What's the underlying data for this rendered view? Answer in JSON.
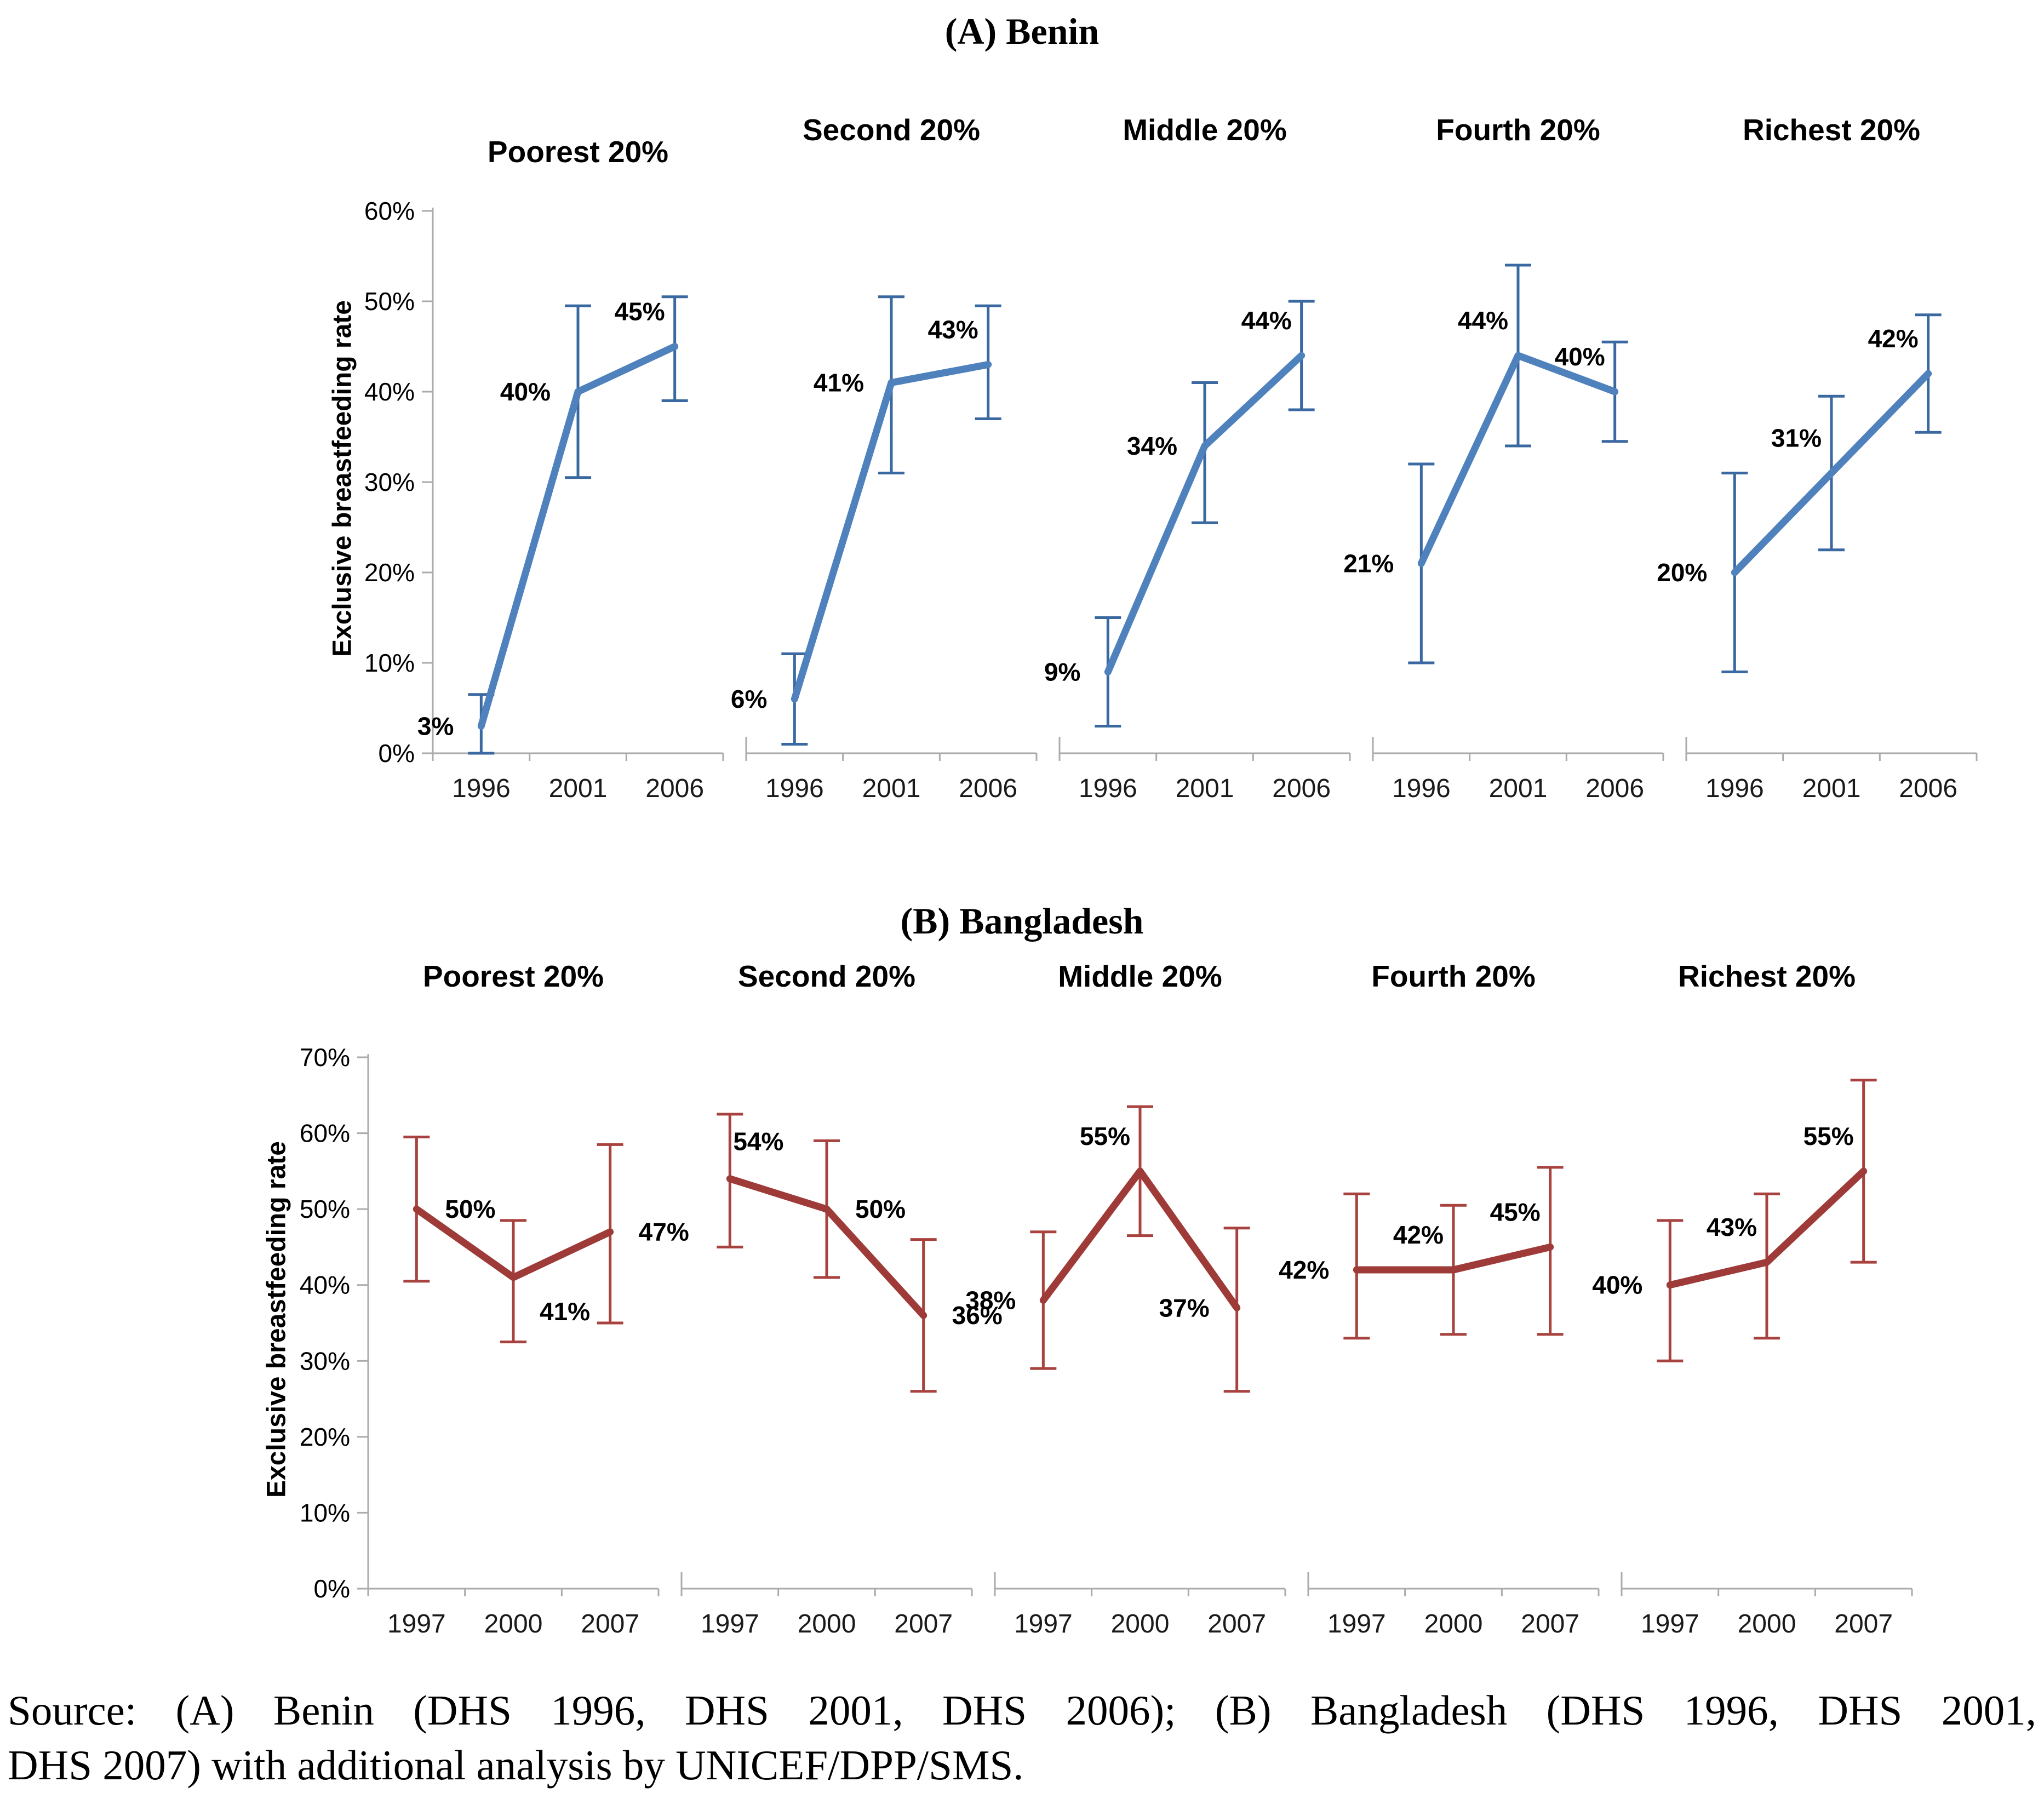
{
  "chart_data": {
    "type": "line",
    "error_bars": true,
    "grid": false,
    "legend": "none",
    "panels": [
      {
        "id": "A",
        "title": "(A) Benin",
        "ylabel": "Exclusive breastfeeding rate",
        "ymax": 60,
        "yticks": [
          "0%",
          "10%",
          "20%",
          "30%",
          "40%",
          "50%",
          "60%"
        ],
        "years": [
          "1996",
          "2001",
          "2006"
        ],
        "line_color": "#4F81BD",
        "error_color": "#3A68A0",
        "charts": [
          {
            "title": "Poorest 20%",
            "values": [
              3,
              40,
              45
            ],
            "points": [
              {
                "label": "3%",
                "value": 3,
                "lo": 0,
                "hi": 6.5,
                "pos": "left"
              },
              {
                "label": "40%",
                "value": 40,
                "lo": 30.5,
                "hi": 49.5,
                "pos": "left"
              },
              {
                "label": "45%",
                "value": 45,
                "lo": 39,
                "hi": 50.5,
                "pos": "above-left"
              }
            ]
          },
          {
            "title": "Second 20%",
            "values": [
              6,
              41,
              43
            ],
            "points": [
              {
                "label": "6%",
                "value": 6,
                "lo": 1,
                "hi": 11,
                "pos": "left"
              },
              {
                "label": "41%",
                "value": 41,
                "lo": 31,
                "hi": 50.5,
                "pos": "left"
              },
              {
                "label": "43%",
                "value": 43,
                "lo": 37,
                "hi": 49.5,
                "pos": "above-left"
              }
            ]
          },
          {
            "title": "Middle 20%",
            "values": [
              9,
              34,
              44
            ],
            "points": [
              {
                "label": "9%",
                "value": 9,
                "lo": 3,
                "hi": 15,
                "pos": "left"
              },
              {
                "label": "34%",
                "value": 34,
                "lo": 25.5,
                "hi": 41,
                "pos": "left"
              },
              {
                "label": "44%",
                "value": 44,
                "lo": 38,
                "hi": 50,
                "pos": "above-left"
              }
            ]
          },
          {
            "title": "Fourth 20%",
            "values": [
              21,
              44,
              40
            ],
            "points": [
              {
                "label": "21%",
                "value": 21,
                "lo": 10,
                "hi": 32,
                "pos": "left"
              },
              {
                "label": "44%",
                "value": 44,
                "lo": 34,
                "hi": 54,
                "pos": "above-left"
              },
              {
                "label": "40%",
                "value": 40,
                "lo": 34.5,
                "hi": 45.5,
                "pos": "above-left"
              }
            ]
          },
          {
            "title": "Richest 20%",
            "values": [
              20,
              31,
              42
            ],
            "points": [
              {
                "label": "20%",
                "value": 20,
                "lo": 9,
                "hi": 31,
                "pos": "left"
              },
              {
                "label": "31%",
                "value": 31,
                "lo": 22.5,
                "hi": 39.5,
                "pos": "above-left"
              },
              {
                "label": "42%",
                "value": 42,
                "lo": 35.5,
                "hi": 48.5,
                "pos": "above-left"
              }
            ]
          }
        ]
      },
      {
        "id": "B",
        "title": "(B) Bangladesh",
        "ylabel": "Exclusive breastfeeding rate",
        "ymax": 70,
        "yticks": [
          "0%",
          "10%",
          "20%",
          "30%",
          "40%",
          "50%",
          "60%",
          "70%"
        ],
        "years": [
          "1997",
          "2000",
          "2007"
        ],
        "line_color": "#9E3B38",
        "error_color": "#A8423E",
        "charts": [
          {
            "title": "Poorest 20%",
            "values": [
              50,
              41,
              47
            ],
            "points": [
              {
                "label": "50%",
                "value": 50,
                "lo": 40.5,
                "hi": 59.5,
                "pos": "right"
              },
              {
                "label": "41%",
                "value": 41,
                "lo": 32.5,
                "hi": 48.5,
                "pos": "below-right"
              },
              {
                "label": "47%",
                "value": 47,
                "lo": 35,
                "hi": 58.5,
                "pos": "right"
              }
            ]
          },
          {
            "title": "Second 20%",
            "values": [
              54,
              50,
              36
            ],
            "points": [
              {
                "label": "54%",
                "value": 54,
                "lo": 45,
                "hi": 62.5,
                "pos": "above-right"
              },
              {
                "label": "50%",
                "value": 50,
                "lo": 41,
                "hi": 59,
                "pos": "right"
              },
              {
                "label": "36%",
                "value": 36,
                "lo": 26,
                "hi": 46,
                "pos": "right"
              }
            ]
          },
          {
            "title": "Middle 20%",
            "values": [
              38,
              55,
              37
            ],
            "points": [
              {
                "label": "38%",
                "value": 38,
                "lo": 29,
                "hi": 47,
                "pos": "left"
              },
              {
                "label": "55%",
                "value": 55,
                "lo": 46.5,
                "hi": 63.5,
                "pos": "above-left"
              },
              {
                "label": "37%",
                "value": 37,
                "lo": 26,
                "hi": 47.5,
                "pos": "left"
              }
            ]
          },
          {
            "title": "Fourth 20%",
            "values": [
              42,
              42,
              45
            ],
            "points": [
              {
                "label": "42%",
                "value": 42,
                "lo": 33,
                "hi": 52,
                "pos": "left"
              },
              {
                "label": "42%",
                "value": 42,
                "lo": 33.5,
                "hi": 50.5,
                "pos": "above-left"
              },
              {
                "label": "45%",
                "value": 45,
                "lo": 33.5,
                "hi": 55.5,
                "pos": "above-left"
              }
            ]
          },
          {
            "title": "Richest 20%",
            "values": [
              40,
              43,
              55
            ],
            "points": [
              {
                "label": "40%",
                "value": 40,
                "lo": 30,
                "hi": 48.5,
                "pos": "left"
              },
              {
                "label": "43%",
                "value": 43,
                "lo": 33,
                "hi": 52,
                "pos": "above-left"
              },
              {
                "label": "55%",
                "value": 55,
                "lo": 43,
                "hi": 67,
                "pos": "above-left"
              }
            ]
          }
        ]
      }
    ]
  },
  "source": {
    "line1": "Source: (A) Benin (DHS 1996, DHS 2001, DHS 2006); (B) Bangladesh (DHS 1996, DHS 2001,",
    "line2": "DHS 2007) with additional analysis by UNICEF/DPP/SMS."
  }
}
